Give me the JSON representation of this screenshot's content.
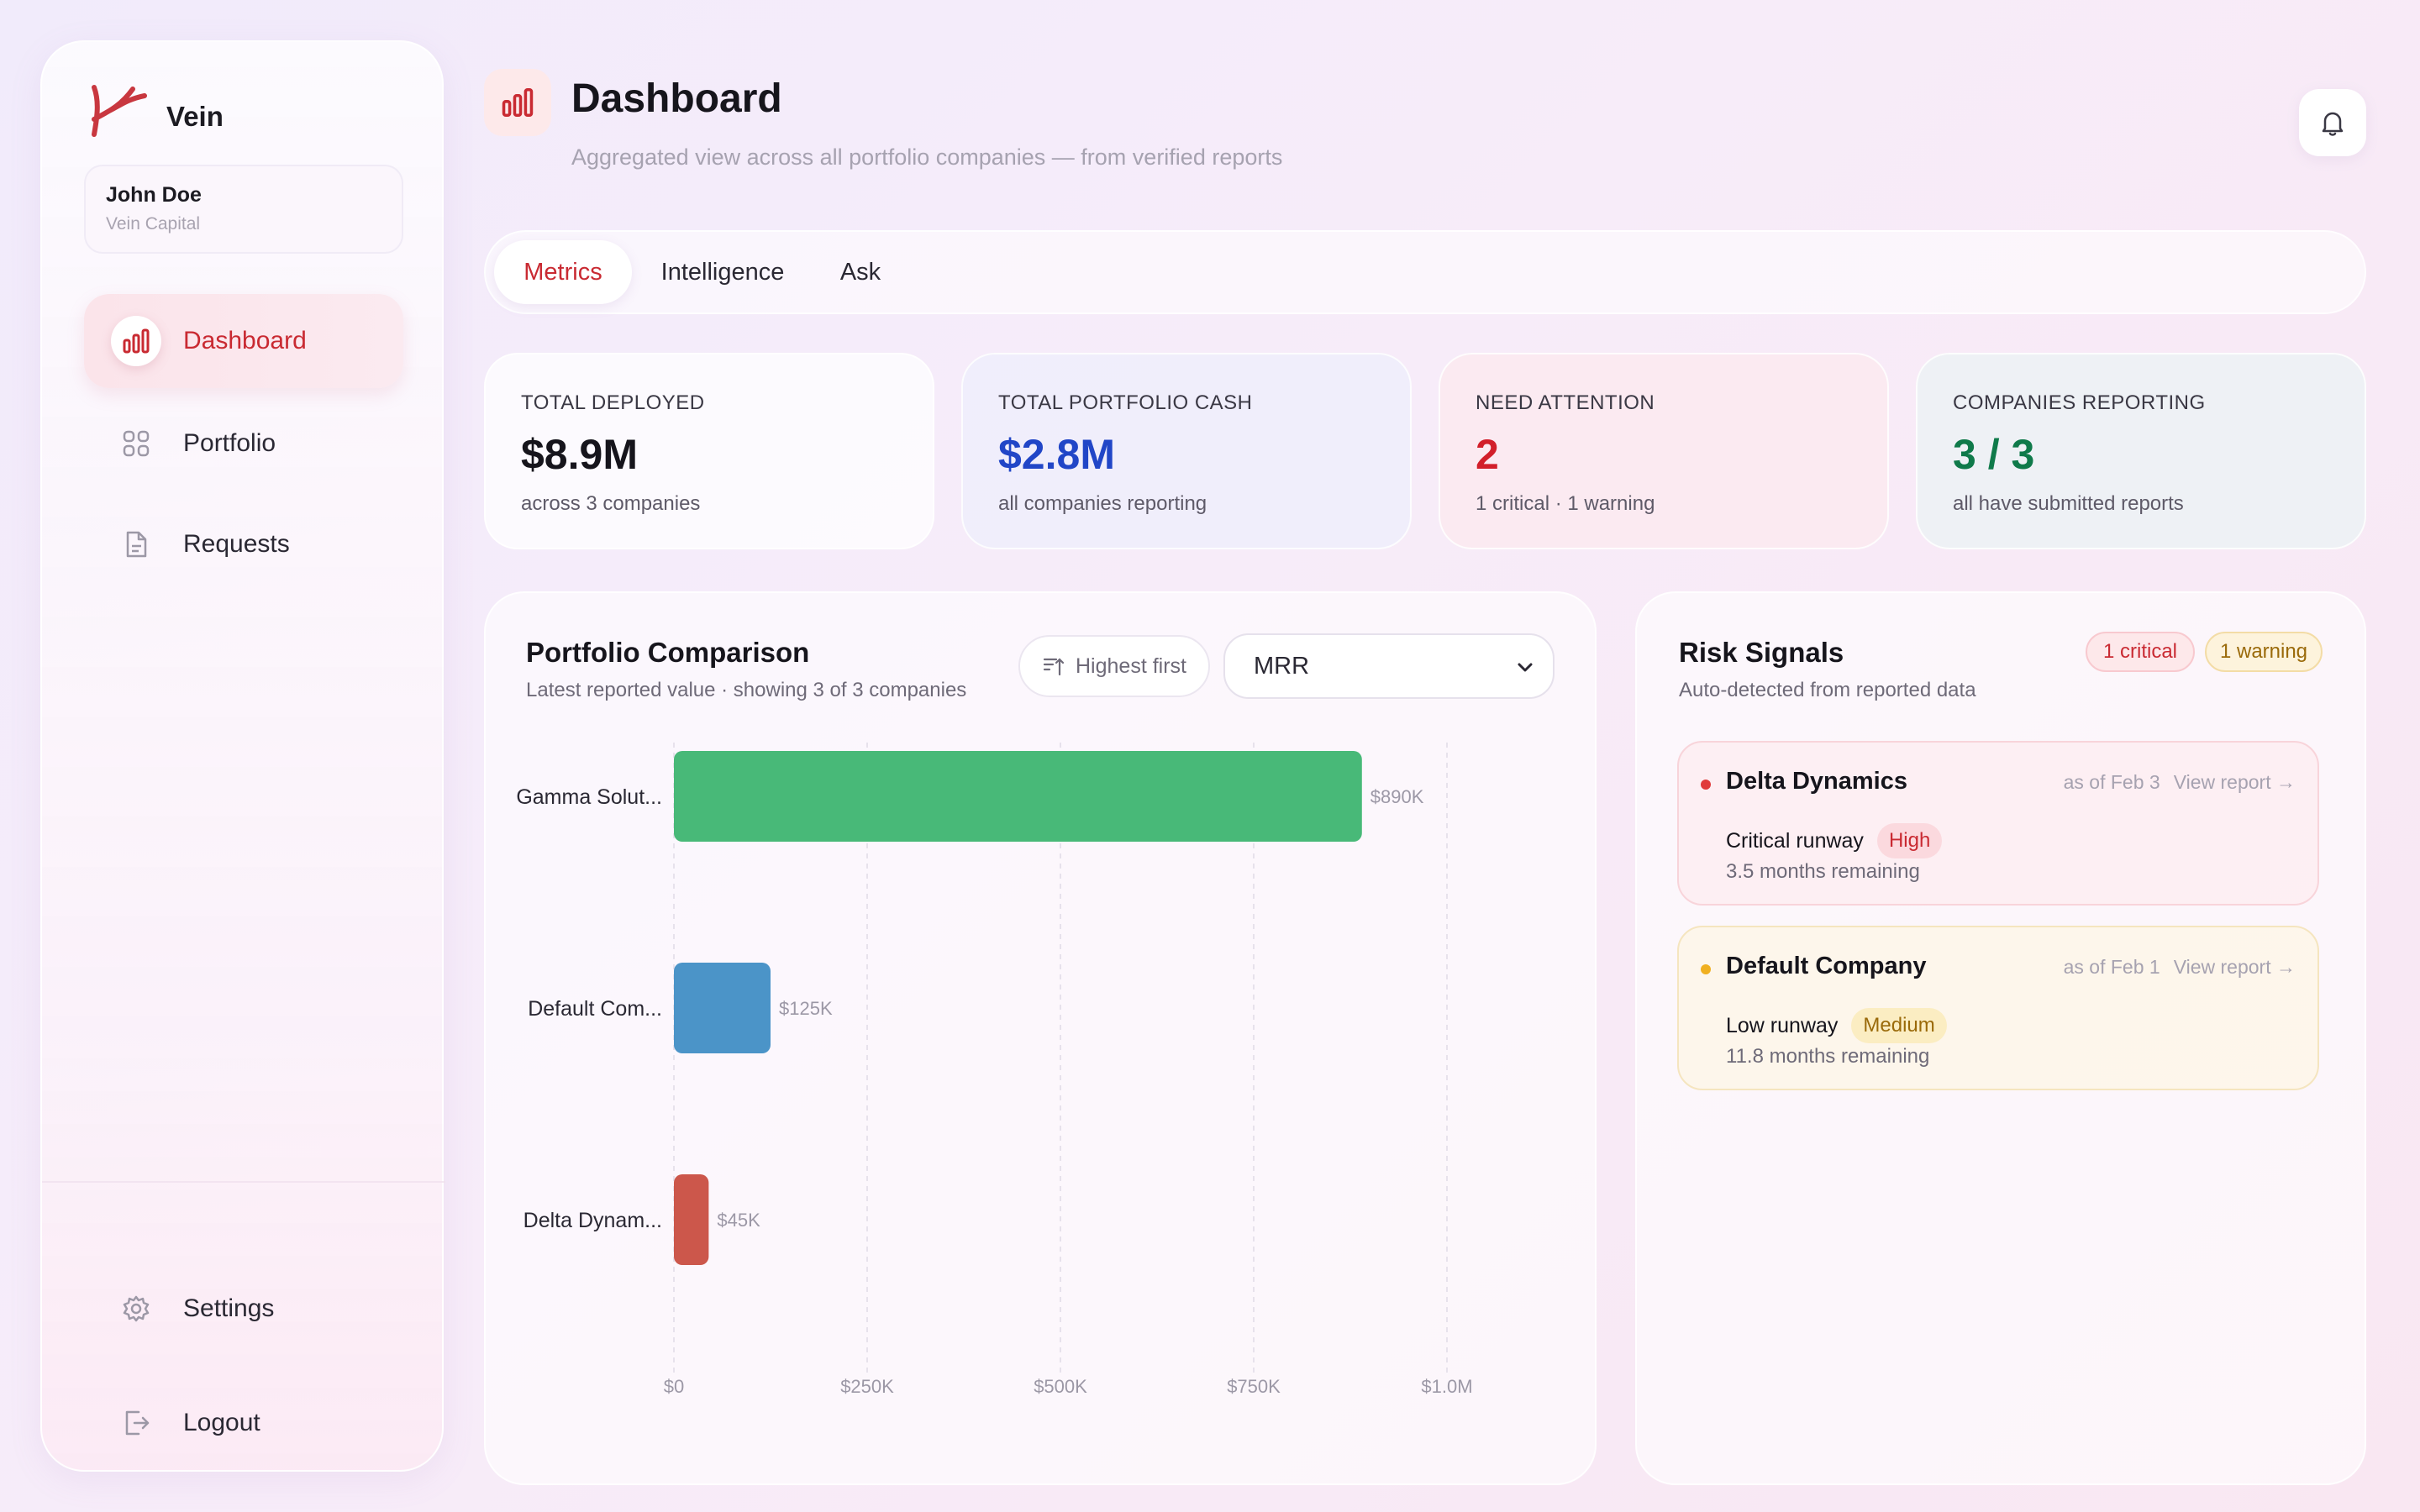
{
  "app": {
    "brand": "Vein"
  },
  "user": {
    "name": "John Doe",
    "org": "Vein Capital"
  },
  "sidebar": {
    "items": [
      {
        "label": "Dashboard",
        "icon": "bar-chart-icon",
        "active": true
      },
      {
        "label": "Portfolio",
        "icon": "grid-icon",
        "active": false
      },
      {
        "label": "Requests",
        "icon": "document-icon",
        "active": false
      }
    ],
    "bottom_items": [
      {
        "label": "Settings",
        "icon": "gear-icon"
      },
      {
        "label": "Logout",
        "icon": "logout-icon"
      }
    ]
  },
  "header": {
    "title": "Dashboard",
    "subtitle": "Aggregated view across all portfolio companies — from verified reports"
  },
  "tabs": [
    {
      "label": "Metrics",
      "active": true
    },
    {
      "label": "Intelligence",
      "active": false
    },
    {
      "label": "Ask",
      "active": false
    }
  ],
  "stats": [
    {
      "label": "TOTAL DEPLOYED",
      "value": "$8.9M",
      "note": "across 3 companies",
      "color": "#16151c"
    },
    {
      "label": "TOTAL PORTFOLIO CASH",
      "value": "$2.8M",
      "note": "all companies reporting",
      "color": "#2146c7"
    },
    {
      "label": "NEED ATTENTION",
      "value": "2",
      "note": "1 critical · 1 warning",
      "color": "#d21f2a"
    },
    {
      "label": "COMPANIES REPORTING",
      "value": "3 / 3",
      "note": "all have submitted reports",
      "color": "#0f7a4a"
    }
  ],
  "comparison": {
    "title": "Portfolio Comparison",
    "subtitle": "Latest reported value · showing 3 of 3 companies",
    "sort_label": "Highest first",
    "metric_selected": "MRR"
  },
  "chart_data": {
    "type": "bar",
    "orientation": "horizontal",
    "categories": [
      "Gamma Solut...",
      "Default Com...",
      "Delta Dynam..."
    ],
    "values": [
      890000,
      125000,
      45000
    ],
    "value_labels": [
      "$890K",
      "$125K",
      "$45K"
    ],
    "colors": [
      "#48b978",
      "#4b94c8",
      "#cc574b"
    ],
    "xlim": [
      0,
      1000000
    ],
    "ticks": [
      0,
      250000,
      500000,
      750000,
      1000000
    ],
    "tick_labels": [
      "$0",
      "$250K",
      "$500K",
      "$750K",
      "$1.0M"
    ],
    "grid": true
  },
  "risk": {
    "title": "Risk Signals",
    "subtitle": "Auto-detected from reported data",
    "badge_critical": "1 critical",
    "badge_warning": "1 warning",
    "signals": [
      {
        "company": "Delta Dynamics",
        "as_of": "as of Feb 3",
        "link": "View report →",
        "type": "Critical runway",
        "severity": "High",
        "detail": "3.5 months remaining"
      },
      {
        "company": "Default Company",
        "as_of": "as of Feb 1",
        "link": "View report →",
        "type": "Low runway",
        "severity": "Medium",
        "detail": "11.8 months remaining"
      }
    ]
  }
}
